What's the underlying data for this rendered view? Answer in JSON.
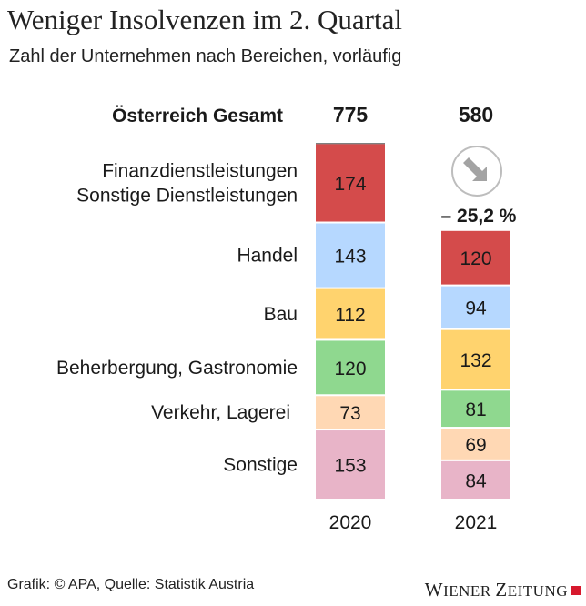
{
  "title": "Weniger Insolvenzen im 2. Quartal",
  "subtitle": "Zahl der Unternehmen nach Bereichen, vorläufig",
  "source": "Grafik: © APA, Quelle: Statistik Austria",
  "logo": {
    "first": "Wiener",
    "second": "Zeitung"
  },
  "colors": {
    "finanz": "#d44b4b",
    "handel": "#b6d8ff",
    "bau": "#ffd36e",
    "beherbergung": "#8fd88f",
    "verkehr": "#ffd8b4",
    "sonstige": "#e8b4c8"
  },
  "chart_data": {
    "type": "bar",
    "stacked": true,
    "categories": [
      "2020",
      "2021"
    ],
    "totals_label": "Österreich Gesamt",
    "totals": [
      775,
      580
    ],
    "change_label": "– 25,2 %",
    "change_icon": "arrow-down-right-icon",
    "series": [
      {
        "name": "Finanzdienstleistungen Sonstige Dienstleistungen",
        "lines": [
          "Finanzdienstleistungen",
          "Sonstige Dienstleistungen"
        ],
        "key": "finanz",
        "values": [
          174,
          120
        ]
      },
      {
        "name": "Handel",
        "lines": [
          "Handel"
        ],
        "key": "handel",
        "values": [
          143,
          94
        ]
      },
      {
        "name": "Bau",
        "lines": [
          "Bau"
        ],
        "key": "bau",
        "values": [
          112,
          132
        ]
      },
      {
        "name": "Beherbergung, Gastronomie",
        "lines": [
          "Beherbergung, Gastronomie"
        ],
        "key": "beherbergung",
        "values": [
          120,
          81
        ]
      },
      {
        "name": "Verkehr, Lagerei",
        "lines": [
          "Verkehr, Lagerei"
        ],
        "key": "verkehr",
        "values": [
          73,
          69
        ]
      },
      {
        "name": "Sonstige",
        "lines": [
          "Sonstige"
        ],
        "key": "sonstige",
        "values": [
          153,
          84
        ]
      }
    ]
  }
}
